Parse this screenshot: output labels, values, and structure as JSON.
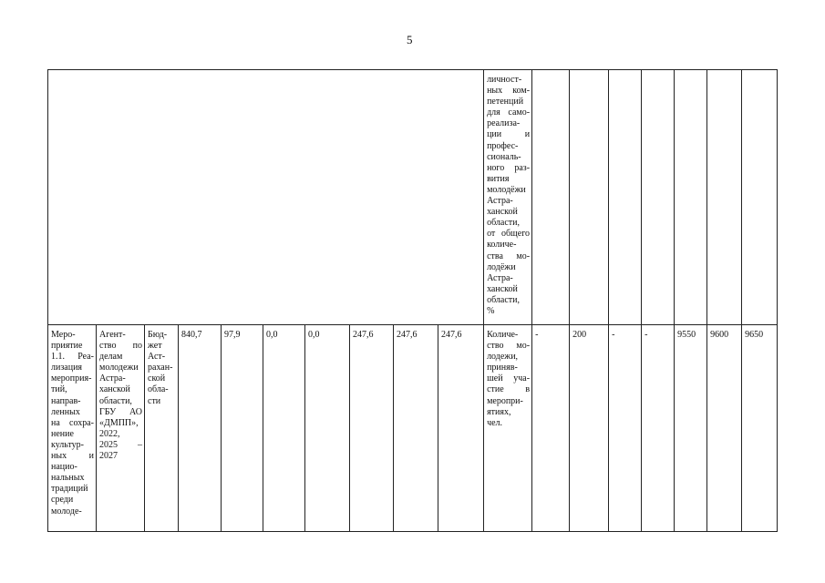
{
  "page_number": "5",
  "table": {
    "rows": [
      {
        "cells": [
          [
            "личност-",
            "ных ком-",
            "петенций",
            "для само-",
            "реализа-",
            "ции и",
            "профес-",
            "сиональ-",
            "ного раз-",
            "вития",
            "молодёжи",
            "Астра-",
            "ханской",
            "области,",
            "от общего",
            "количе-",
            "ства мо-",
            "лодёжи",
            "Астра-",
            "ханской",
            "области,",
            "%"
          ]
        ]
      },
      {
        "cells": [
          [
            "Меро-",
            "приятие",
            "1.1. Реа-",
            "лизация",
            "мероприя-",
            "тий,",
            "направ-",
            "ленных",
            "на сохра-",
            "нение",
            "культур-",
            "ных и",
            "нацио-",
            "нальных",
            "традиций",
            "среди",
            "молоде-"
          ],
          [
            "Агент-",
            "ство по",
            "делам",
            "молодежи",
            "Астра-",
            "ханской",
            "области,",
            "ГБУ АО",
            "«ДМПП»,",
            "2022,",
            "2025 –",
            "2027"
          ],
          [
            "Бюд-",
            "жет",
            "Аст-",
            "рахан-",
            "ской",
            "обла-",
            "сти"
          ],
          [
            "840,7"
          ],
          [
            "97,9"
          ],
          [
            "0,0"
          ],
          [
            "0,0"
          ],
          [
            "247,6"
          ],
          [
            "247,6"
          ],
          [
            "247,6"
          ],
          [
            "Количе-",
            "ство мо-",
            "лодежи,",
            "приняв-",
            "шей уча-",
            "стие в",
            "меропри-",
            "ятиях,",
            "чел."
          ],
          [
            "-"
          ],
          [
            "200"
          ],
          [
            "-"
          ],
          [
            "-"
          ],
          [
            "9550"
          ],
          [
            "9600"
          ],
          [
            "9650"
          ]
        ]
      }
    ]
  }
}
